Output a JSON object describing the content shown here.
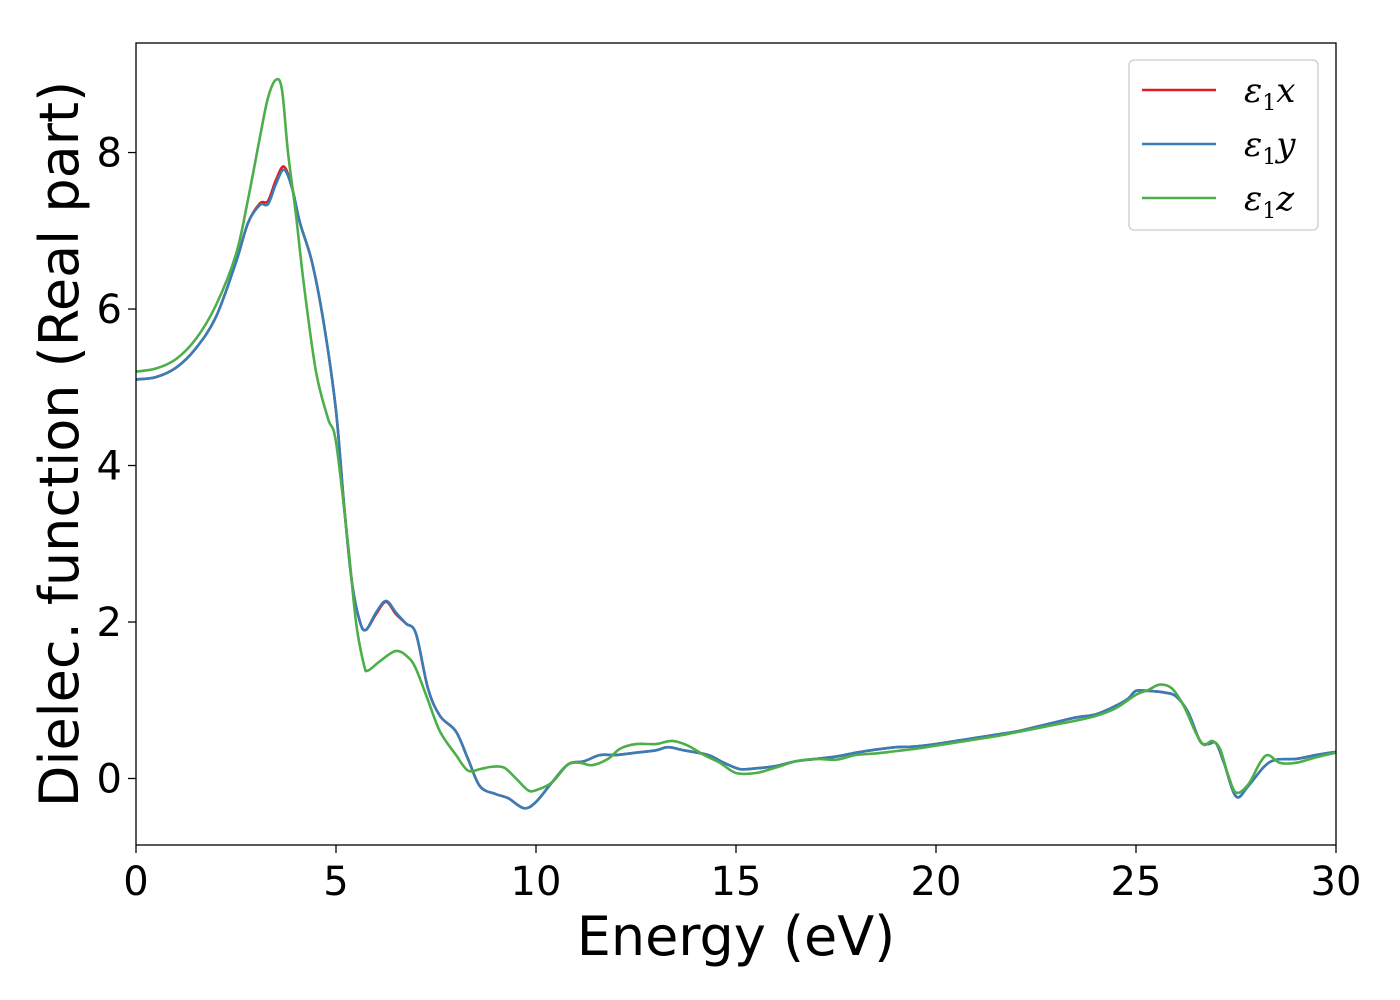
{
  "chart_data": {
    "type": "line",
    "xlabel": "Energy (eV)",
    "ylabel": "Dielec. function (Real part)",
    "xlim": [
      0,
      30
    ],
    "ylim": [
      -0.85,
      9.4
    ],
    "xticks": [
      0,
      5,
      10,
      15,
      20,
      25,
      30
    ],
    "yticks": [
      0,
      2,
      4,
      6,
      8
    ],
    "grid": false,
    "legend_position": "top-right",
    "series": [
      {
        "name": "ε1x",
        "legend": {
          "symbol": "ε",
          "sub": "1",
          "axis": "x"
        },
        "color": "#e41a1c",
        "points": [
          [
            0,
            5.1
          ],
          [
            0.5,
            5.13
          ],
          [
            1.0,
            5.25
          ],
          [
            1.5,
            5.5
          ],
          [
            2.0,
            5.9
          ],
          [
            2.5,
            6.6
          ],
          [
            2.8,
            7.1
          ],
          [
            3.1,
            7.35
          ],
          [
            3.3,
            7.38
          ],
          [
            3.5,
            7.65
          ],
          [
            3.7,
            7.82
          ],
          [
            3.9,
            7.55
          ],
          [
            4.1,
            7.1
          ],
          [
            4.4,
            6.6
          ],
          [
            4.7,
            5.8
          ],
          [
            5.0,
            4.7
          ],
          [
            5.2,
            3.5
          ],
          [
            5.4,
            2.5
          ],
          [
            5.6,
            2.0
          ],
          [
            5.75,
            1.9
          ],
          [
            6.0,
            2.1
          ],
          [
            6.25,
            2.26
          ],
          [
            6.5,
            2.1
          ],
          [
            6.75,
            1.98
          ],
          [
            7.0,
            1.85
          ],
          [
            7.3,
            1.15
          ],
          [
            7.6,
            0.8
          ],
          [
            8.0,
            0.6
          ],
          [
            8.3,
            0.25
          ],
          [
            8.6,
            -0.1
          ],
          [
            9.0,
            -0.2
          ],
          [
            9.3,
            -0.25
          ],
          [
            9.7,
            -0.38
          ],
          [
            10.0,
            -0.3
          ],
          [
            10.4,
            -0.05
          ],
          [
            10.8,
            0.18
          ],
          [
            11.2,
            0.22
          ],
          [
            11.6,
            0.3
          ],
          [
            12.0,
            0.3
          ],
          [
            12.5,
            0.33
          ],
          [
            13.0,
            0.36
          ],
          [
            13.3,
            0.4
          ],
          [
            13.7,
            0.36
          ],
          [
            14.3,
            0.3
          ],
          [
            14.7,
            0.2
          ],
          [
            15.1,
            0.12
          ],
          [
            15.5,
            0.13
          ],
          [
            16.0,
            0.16
          ],
          [
            16.5,
            0.22
          ],
          [
            17.0,
            0.25
          ],
          [
            17.5,
            0.28
          ],
          [
            18.0,
            0.33
          ],
          [
            18.5,
            0.37
          ],
          [
            19.0,
            0.4
          ],
          [
            19.5,
            0.41
          ],
          [
            20.0,
            0.44
          ],
          [
            20.5,
            0.48
          ],
          [
            21.0,
            0.52
          ],
          [
            21.5,
            0.56
          ],
          [
            22.0,
            0.6
          ],
          [
            22.5,
            0.66
          ],
          [
            23.0,
            0.72
          ],
          [
            23.5,
            0.78
          ],
          [
            24.0,
            0.82
          ],
          [
            24.5,
            0.93
          ],
          [
            24.8,
            1.02
          ],
          [
            25.0,
            1.12
          ],
          [
            25.3,
            1.12
          ],
          [
            25.7,
            1.1
          ],
          [
            26.0,
            1.05
          ],
          [
            26.3,
            0.85
          ],
          [
            26.6,
            0.48
          ],
          [
            26.8,
            0.44
          ],
          [
            27.0,
            0.45
          ],
          [
            27.2,
            0.2
          ],
          [
            27.5,
            -0.23
          ],
          [
            27.8,
            -0.1
          ],
          [
            28.2,
            0.15
          ],
          [
            28.5,
            0.24
          ],
          [
            29.0,
            0.25
          ],
          [
            29.5,
            0.3
          ],
          [
            30.0,
            0.34
          ]
        ]
      },
      {
        "name": "ε1y",
        "legend": {
          "symbol": "ε",
          "sub": "1",
          "axis": "y"
        },
        "color": "#377eb8",
        "points": [
          [
            0,
            5.1
          ],
          [
            0.5,
            5.13
          ],
          [
            1.0,
            5.25
          ],
          [
            1.5,
            5.5
          ],
          [
            2.0,
            5.9
          ],
          [
            2.5,
            6.6
          ],
          [
            2.8,
            7.1
          ],
          [
            3.1,
            7.33
          ],
          [
            3.3,
            7.34
          ],
          [
            3.5,
            7.6
          ],
          [
            3.7,
            7.78
          ],
          [
            3.9,
            7.55
          ],
          [
            4.1,
            7.1
          ],
          [
            4.4,
            6.6
          ],
          [
            4.7,
            5.8
          ],
          [
            5.0,
            4.7
          ],
          [
            5.2,
            3.5
          ],
          [
            5.4,
            2.5
          ],
          [
            5.6,
            2.0
          ],
          [
            5.75,
            1.9
          ],
          [
            6.0,
            2.12
          ],
          [
            6.25,
            2.27
          ],
          [
            6.5,
            2.12
          ],
          [
            6.75,
            1.98
          ],
          [
            7.0,
            1.85
          ],
          [
            7.3,
            1.15
          ],
          [
            7.6,
            0.8
          ],
          [
            8.0,
            0.6
          ],
          [
            8.3,
            0.25
          ],
          [
            8.6,
            -0.1
          ],
          [
            9.0,
            -0.2
          ],
          [
            9.3,
            -0.25
          ],
          [
            9.7,
            -0.38
          ],
          [
            10.0,
            -0.3
          ],
          [
            10.4,
            -0.05
          ],
          [
            10.8,
            0.18
          ],
          [
            11.2,
            0.22
          ],
          [
            11.6,
            0.3
          ],
          [
            12.0,
            0.3
          ],
          [
            12.5,
            0.33
          ],
          [
            13.0,
            0.36
          ],
          [
            13.3,
            0.4
          ],
          [
            13.7,
            0.36
          ],
          [
            14.3,
            0.3
          ],
          [
            14.7,
            0.2
          ],
          [
            15.1,
            0.12
          ],
          [
            15.5,
            0.13
          ],
          [
            16.0,
            0.16
          ],
          [
            16.5,
            0.22
          ],
          [
            17.0,
            0.25
          ],
          [
            17.5,
            0.28
          ],
          [
            18.0,
            0.33
          ],
          [
            18.5,
            0.37
          ],
          [
            19.0,
            0.4
          ],
          [
            19.5,
            0.41
          ],
          [
            20.0,
            0.44
          ],
          [
            20.5,
            0.48
          ],
          [
            21.0,
            0.52
          ],
          [
            21.5,
            0.56
          ],
          [
            22.0,
            0.6
          ],
          [
            22.5,
            0.66
          ],
          [
            23.0,
            0.72
          ],
          [
            23.5,
            0.78
          ],
          [
            24.0,
            0.82
          ],
          [
            24.5,
            0.93
          ],
          [
            24.8,
            1.02
          ],
          [
            25.0,
            1.12
          ],
          [
            25.3,
            1.12
          ],
          [
            25.7,
            1.1
          ],
          [
            26.0,
            1.05
          ],
          [
            26.3,
            0.85
          ],
          [
            26.6,
            0.48
          ],
          [
            26.8,
            0.44
          ],
          [
            27.0,
            0.45
          ],
          [
            27.2,
            0.2
          ],
          [
            27.5,
            -0.23
          ],
          [
            27.8,
            -0.1
          ],
          [
            28.2,
            0.15
          ],
          [
            28.5,
            0.24
          ],
          [
            29.0,
            0.25
          ],
          [
            29.5,
            0.3
          ],
          [
            30.0,
            0.34
          ]
        ]
      },
      {
        "name": "ε1z",
        "legend": {
          "symbol": "ε",
          "sub": "1",
          "axis": "z"
        },
        "color": "#4daf4a",
        "points": [
          [
            0,
            5.2
          ],
          [
            0.5,
            5.24
          ],
          [
            1.0,
            5.36
          ],
          [
            1.5,
            5.62
          ],
          [
            2.0,
            6.05
          ],
          [
            2.5,
            6.7
          ],
          [
            2.8,
            7.4
          ],
          [
            3.1,
            8.2
          ],
          [
            3.3,
            8.7
          ],
          [
            3.5,
            8.93
          ],
          [
            3.65,
            8.8
          ],
          [
            3.8,
            8.0
          ],
          [
            4.0,
            7.2
          ],
          [
            4.2,
            6.3
          ],
          [
            4.5,
            5.2
          ],
          [
            4.8,
            4.6
          ],
          [
            5.0,
            4.3
          ],
          [
            5.3,
            3.0
          ],
          [
            5.5,
            2.0
          ],
          [
            5.7,
            1.45
          ],
          [
            5.8,
            1.38
          ],
          [
            6.1,
            1.5
          ],
          [
            6.5,
            1.63
          ],
          [
            6.8,
            1.55
          ],
          [
            7.0,
            1.4
          ],
          [
            7.3,
            1.0
          ],
          [
            7.6,
            0.6
          ],
          [
            8.0,
            0.3
          ],
          [
            8.3,
            0.1
          ],
          [
            8.6,
            0.12
          ],
          [
            8.9,
            0.15
          ],
          [
            9.2,
            0.14
          ],
          [
            9.5,
            0.0
          ],
          [
            9.8,
            -0.15
          ],
          [
            10.0,
            -0.15
          ],
          [
            10.4,
            -0.05
          ],
          [
            10.8,
            0.18
          ],
          [
            11.1,
            0.2
          ],
          [
            11.4,
            0.17
          ],
          [
            11.8,
            0.25
          ],
          [
            12.1,
            0.38
          ],
          [
            12.5,
            0.44
          ],
          [
            13.0,
            0.44
          ],
          [
            13.4,
            0.48
          ],
          [
            13.8,
            0.42
          ],
          [
            14.2,
            0.3
          ],
          [
            14.6,
            0.2
          ],
          [
            15.0,
            0.07
          ],
          [
            15.5,
            0.07
          ],
          [
            16.0,
            0.14
          ],
          [
            16.5,
            0.22
          ],
          [
            17.0,
            0.25
          ],
          [
            17.5,
            0.24
          ],
          [
            18.0,
            0.3
          ],
          [
            18.5,
            0.32
          ],
          [
            19.0,
            0.35
          ],
          [
            19.5,
            0.38
          ],
          [
            20.0,
            0.42
          ],
          [
            20.5,
            0.46
          ],
          [
            21.0,
            0.5
          ],
          [
            21.5,
            0.54
          ],
          [
            22.0,
            0.59
          ],
          [
            22.5,
            0.64
          ],
          [
            23.0,
            0.69
          ],
          [
            23.5,
            0.74
          ],
          [
            24.0,
            0.8
          ],
          [
            24.5,
            0.9
          ],
          [
            25.0,
            1.07
          ],
          [
            25.3,
            1.13
          ],
          [
            25.6,
            1.2
          ],
          [
            25.9,
            1.15
          ],
          [
            26.2,
            0.92
          ],
          [
            26.5,
            0.58
          ],
          [
            26.7,
            0.43
          ],
          [
            26.9,
            0.48
          ],
          [
            27.1,
            0.38
          ],
          [
            27.3,
            0.05
          ],
          [
            27.5,
            -0.18
          ],
          [
            27.8,
            -0.08
          ],
          [
            28.1,
            0.2
          ],
          [
            28.3,
            0.3
          ],
          [
            28.6,
            0.2
          ],
          [
            29.0,
            0.2
          ],
          [
            29.5,
            0.27
          ],
          [
            30.0,
            0.33
          ]
        ]
      }
    ]
  }
}
